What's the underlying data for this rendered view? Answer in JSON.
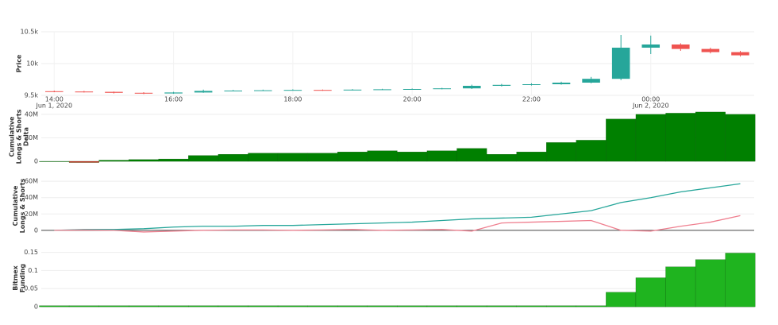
{
  "chart_data": [
    {
      "type": "candlestick",
      "y_label": [
        "Price"
      ],
      "x": [
        "2020-06-01 14:00",
        "2020-06-01 14:30",
        "2020-06-01 15:00",
        "2020-06-01 15:30",
        "2020-06-01 16:00",
        "2020-06-01 16:30",
        "2020-06-01 17:00",
        "2020-06-01 17:30",
        "2020-06-01 18:00",
        "2020-06-01 18:30",
        "2020-06-01 19:00",
        "2020-06-01 19:30",
        "2020-06-01 20:00",
        "2020-06-01 20:30",
        "2020-06-01 21:00",
        "2020-06-01 21:30",
        "2020-06-01 22:00",
        "2020-06-01 22:30",
        "2020-06-01 23:00",
        "2020-06-01 23:30",
        "2020-06-02 00:00",
        "2020-06-02 00:30",
        "2020-06-02 01:00",
        "2020-06-02 01:30"
      ],
      "open": [
        9565,
        9560,
        9555,
        9540,
        9530,
        9545,
        9570,
        9575,
        9580,
        9585,
        9580,
        9590,
        9595,
        9600,
        9610,
        9650,
        9665,
        9675,
        9700,
        9760,
        10250,
        10300,
        10230,
        10180
      ],
      "high": [
        9575,
        9570,
        9560,
        9550,
        9555,
        9590,
        9585,
        9590,
        9595,
        9592,
        9598,
        9603,
        9608,
        9618,
        9668,
        9680,
        9690,
        9715,
        9790,
        10450,
        10440,
        10320,
        10250,
        10200
      ],
      "low": [
        9550,
        9545,
        9530,
        9520,
        9525,
        9540,
        9565,
        9570,
        9575,
        9572,
        9578,
        9585,
        9590,
        9595,
        9600,
        9640,
        9655,
        9668,
        9690,
        9740,
        10150,
        10200,
        10160,
        10110
      ],
      "close": [
        9560,
        9555,
        9540,
        9530,
        9545,
        9570,
        9575,
        9580,
        9585,
        9580,
        9590,
        9595,
        9600,
        9610,
        9650,
        9665,
        9675,
        9700,
        9760,
        10250,
        10300,
        10230,
        10180,
        10130
      ],
      "increasing_color": "#26a69a",
      "decreasing_color": "#ef5350",
      "xlim": [
        "2020-06-01 13:47",
        "2020-06-02 01:44"
      ],
      "xticks": [
        {
          "value": "2020-06-01 14:00",
          "label": "14:00"
        },
        {
          "value": "2020-06-01 16:00",
          "label": "16:00"
        },
        {
          "value": "2020-06-01 18:00",
          "label": "18:00"
        },
        {
          "value": "2020-06-01 20:00",
          "label": "20:00"
        },
        {
          "value": "2020-06-01 22:00",
          "label": "22:00"
        },
        {
          "value": "2020-06-02 00:00",
          "label": "00:00"
        }
      ],
      "xtick_dates": [
        {
          "value": "2020-06-01 14:00",
          "label": "Jun 1, 2020"
        },
        {
          "value": "2020-06-02 00:00",
          "label": "Jun 2, 2020"
        }
      ],
      "ylim": [
        9500,
        10500
      ],
      "yticks": [
        {
          "value": 9500,
          "label": "9.5k"
        },
        {
          "value": 10000,
          "label": "10k"
        },
        {
          "value": 10500,
          "label": "10.5k"
        }
      ],
      "grid": true
    },
    {
      "type": "bar",
      "y_label": [
        "Cumulative",
        "Longs & Shorts",
        "Delta"
      ],
      "x": [
        "2020-06-01 14:00",
        "2020-06-01 14:30",
        "2020-06-01 15:00",
        "2020-06-01 15:30",
        "2020-06-01 16:00",
        "2020-06-01 16:30",
        "2020-06-01 17:00",
        "2020-06-01 17:30",
        "2020-06-01 18:00",
        "2020-06-01 18:30",
        "2020-06-01 19:00",
        "2020-06-01 19:30",
        "2020-06-01 20:00",
        "2020-06-01 20:30",
        "2020-06-01 21:00",
        "2020-06-01 21:30",
        "2020-06-01 22:00",
        "2020-06-01 22:30",
        "2020-06-01 23:00",
        "2020-06-01 23:30",
        "2020-06-02 00:00",
        "2020-06-02 00:30",
        "2020-06-02 01:00",
        "2020-06-02 01:30"
      ],
      "values": [
        0,
        -1000000,
        1000000,
        1500000,
        2000000,
        5000000,
        6000000,
        7000000,
        7000000,
        7000000,
        8000000,
        9000000,
        8000000,
        9000000,
        11000000,
        6000000,
        8000000,
        16000000,
        18000000,
        36000000,
        40000000,
        41000000,
        42000000,
        40000000
      ],
      "color": "#008000",
      "negative_color": "#e0201a",
      "xlim": [
        "2020-06-01 13:47",
        "2020-06-02 01:44"
      ],
      "ylim": [
        -2000000,
        44000000
      ],
      "yticks": [
        0,
        {
          "value": 20000000,
          "label": "20M"
        },
        {
          "value": 40000000,
          "label": "40M"
        }
      ],
      "grid": true
    },
    {
      "type": "line",
      "y_label": [
        "Cumulative",
        "Longs & Shorts"
      ],
      "x": [
        "2020-06-01 14:00",
        "2020-06-01 14:30",
        "2020-06-01 15:00",
        "2020-06-01 15:30",
        "2020-06-01 16:00",
        "2020-06-01 16:30",
        "2020-06-01 17:00",
        "2020-06-01 17:30",
        "2020-06-01 18:00",
        "2020-06-01 18:30",
        "2020-06-01 19:00",
        "2020-06-01 19:30",
        "2020-06-01 20:00",
        "2020-06-01 20:30",
        "2020-06-01 21:00",
        "2020-06-01 21:30",
        "2020-06-01 22:00",
        "2020-06-01 22:30",
        "2020-06-01 23:00",
        "2020-06-01 23:30",
        "2020-06-02 00:00",
        "2020-06-02 00:30",
        "2020-06-02 01:00",
        "2020-06-02 01:30"
      ],
      "series": [
        {
          "color": "#26a69a",
          "values": [
            0,
            1000000,
            1000000,
            2000000,
            4000000,
            5000000,
            5000000,
            6000000,
            6000000,
            7000000,
            8000000,
            9000000,
            10000000,
            12000000,
            14000000,
            15000000,
            16000000,
            20000000,
            24000000,
            34000000,
            40000000,
            47000000,
            52000000,
            57000000
          ]
        },
        {
          "color": "#ef7f8f",
          "values": [
            0,
            500000,
            0,
            -2000000,
            -1000000,
            0,
            500000,
            500000,
            0,
            500000,
            1000000,
            0,
            500000,
            1000000,
            -1000000,
            9000000,
            10000000,
            11000000,
            12000000,
            0,
            -1000000,
            5000000,
            10000000,
            18000000
          ]
        }
      ],
      "xlim": [
        "2020-06-01 13:47",
        "2020-06-02 01:44"
      ],
      "ylim": [
        -5000000,
        65000000
      ],
      "yticks": [
        0,
        {
          "value": 20000000,
          "label": "20M"
        },
        {
          "value": 40000000,
          "label": "40M"
        },
        {
          "value": 60000000,
          "label": "60M"
        }
      ],
      "grid": true
    },
    {
      "type": "bar",
      "y_label": [
        "Bitmex",
        "Funding"
      ],
      "x": [
        "2020-06-01 14:00",
        "2020-06-01 14:30",
        "2020-06-01 15:00",
        "2020-06-01 15:30",
        "2020-06-01 16:00",
        "2020-06-01 16:30",
        "2020-06-01 17:00",
        "2020-06-01 17:30",
        "2020-06-01 18:00",
        "2020-06-01 18:30",
        "2020-06-01 19:00",
        "2020-06-01 19:30",
        "2020-06-01 20:00",
        "2020-06-01 20:30",
        "2020-06-01 21:00",
        "2020-06-01 21:30",
        "2020-06-01 22:00",
        "2020-06-01 22:30",
        "2020-06-01 23:00",
        "2020-06-01 23:30",
        "2020-06-02 00:00",
        "2020-06-02 00:30",
        "2020-06-02 01:00",
        "2020-06-02 01:30"
      ],
      "values": [
        0.003,
        0.003,
        0.003,
        0.003,
        0.003,
        0.003,
        0.003,
        0.003,
        0.003,
        0.003,
        0.003,
        0.003,
        0.003,
        0.003,
        0.003,
        0.003,
        0.003,
        0.003,
        0.003,
        0.04,
        0.08,
        0.11,
        0.13,
        0.148
      ],
      "color": "#1fb41f",
      "negative_color": "#e0201a",
      "xlim": [
        "2020-06-01 13:47",
        "2020-06-02 01:44"
      ],
      "ylim": [
        -0.002,
        0.16
      ],
      "yticks": [
        0,
        0.05,
        0.1,
        0.15
      ],
      "grid": true
    }
  ]
}
